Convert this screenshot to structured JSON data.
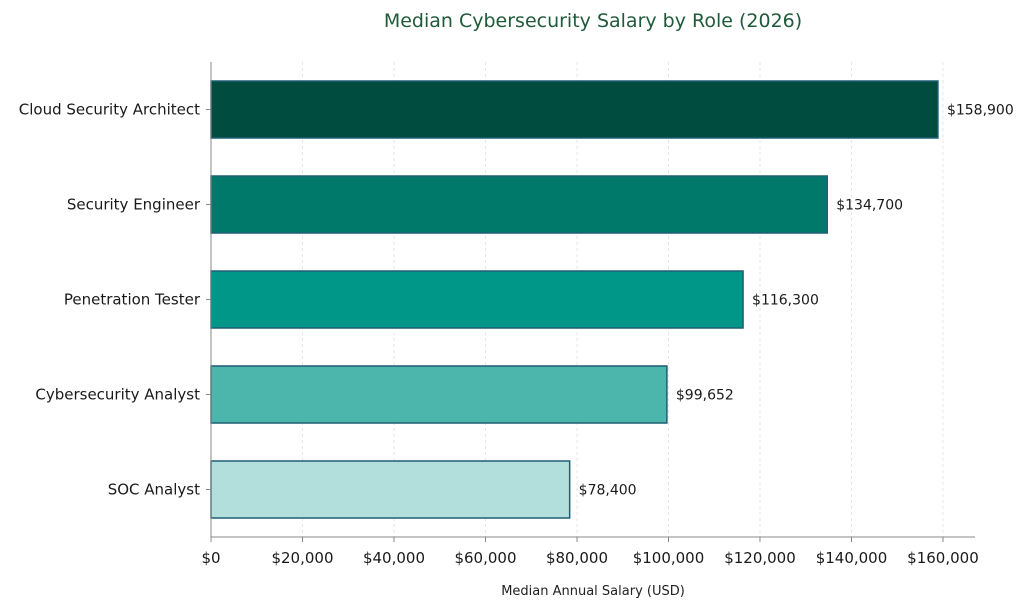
{
  "chart_data": {
    "type": "bar",
    "orientation": "horizontal",
    "title": "Median Cybersecurity Salary by Role (2026)",
    "xlabel": "Median Annual Salary (USD)",
    "ylabel": "",
    "categories": [
      "Cloud Security Architect",
      "Security Engineer",
      "Penetration Tester",
      "Cybersecurity Analyst",
      "SOC Analyst"
    ],
    "values": [
      158900,
      134700,
      116300,
      99652,
      78400
    ],
    "value_labels": [
      "$158,900",
      "$134,700",
      "$116,300",
      "$99,652",
      "$78,400"
    ],
    "xlim": [
      0,
      167000
    ],
    "xticks": [
      0,
      20000,
      40000,
      60000,
      80000,
      100000,
      120000,
      140000,
      160000
    ],
    "xtick_labels": [
      "$0",
      "$20,000",
      "$40,000",
      "$60,000",
      "$80,000",
      "$100,000",
      "$120,000",
      "$140,000",
      "$160,000"
    ],
    "colors": [
      "#004d40",
      "#00796b",
      "#009688",
      "#4db6ac",
      "#b2dfdb"
    ],
    "grid": true,
    "legend": "none"
  }
}
